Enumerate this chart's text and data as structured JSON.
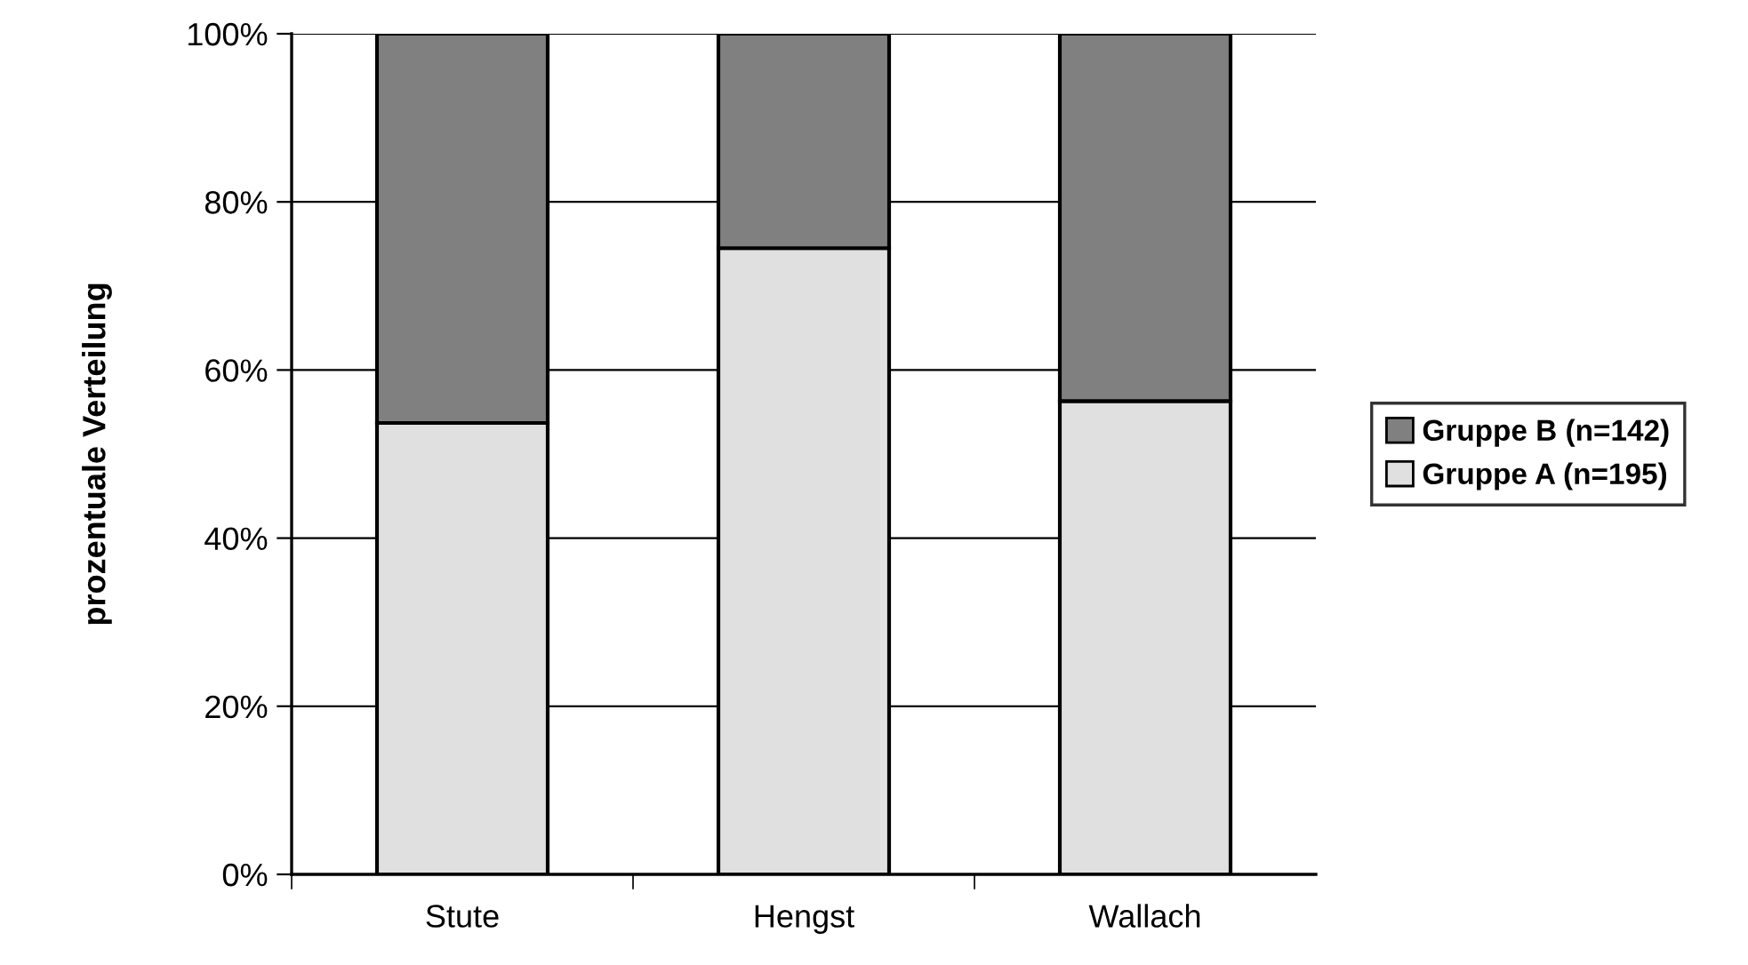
{
  "chart_data": {
    "type": "bar",
    "stacked": true,
    "categories": [
      "Stute",
      "Hengst",
      "Wallach"
    ],
    "ylabel": "prozentuale Verteilung",
    "series": [
      {
        "name": "Gruppe A (n=195)",
        "color": "#e0e0e0",
        "values": [
          53.7,
          74.5,
          56.3
        ]
      },
      {
        "name": "Gruppe B (n=142)",
        "color": "#808080",
        "values": [
          46.3,
          25.5,
          43.7
        ]
      }
    ],
    "ylim": [
      0,
      100
    ],
    "yticks": [
      {
        "value": 0,
        "label": "0%"
      },
      {
        "value": 20,
        "label": "20%"
      },
      {
        "value": 40,
        "label": "40%"
      },
      {
        "value": 60,
        "label": "60%"
      },
      {
        "value": 80,
        "label": "80%"
      },
      {
        "value": 100,
        "label": "100%"
      }
    ],
    "grid": "y",
    "legend": "right"
  }
}
